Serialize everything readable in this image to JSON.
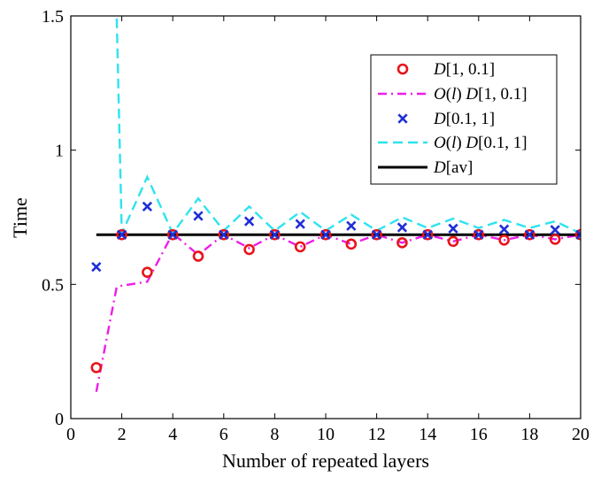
{
  "chart_data": {
    "type": "line",
    "xlabel": "Number of repeated layers",
    "ylabel": "Time",
    "xlim": [
      0,
      20
    ],
    "ylim": [
      0,
      1.5
    ],
    "xticks": [
      0,
      2,
      4,
      6,
      8,
      10,
      12,
      14,
      16,
      18,
      20
    ],
    "yticks": [
      0,
      0.5,
      1,
      1.5
    ],
    "xtick_labels": [
      "0",
      "2",
      "4",
      "6",
      "8",
      "10",
      "12",
      "14",
      "16",
      "18",
      "20"
    ],
    "ytick_labels": [
      "0",
      "0.5",
      "1",
      "1.5"
    ],
    "grid": false,
    "legend_position": "top-right",
    "series": [
      {
        "key": "d1",
        "legend": {
          "italic": "D",
          "rest": "[1, 0.1]"
        },
        "style": "markers-circle",
        "color": "#e8141b",
        "x": [
          1,
          2,
          3,
          4,
          5,
          6,
          7,
          8,
          9,
          10,
          11,
          12,
          13,
          14,
          15,
          16,
          17,
          18,
          19,
          20
        ],
        "y": [
          0.19,
          0.685,
          0.545,
          0.685,
          0.605,
          0.685,
          0.63,
          0.685,
          0.64,
          0.685,
          0.65,
          0.685,
          0.655,
          0.685,
          0.66,
          0.685,
          0.665,
          0.685,
          0.668,
          0.685
        ]
      },
      {
        "key": "o1",
        "legend": {
          "italic": "O",
          "mid": "(",
          "italic2": "l",
          "mid2": ") ",
          "italic3": "D",
          "rest": "[1, 0.1]"
        },
        "style": "dashdot",
        "color": "#ee1ee8",
        "x": [
          1,
          1.8,
          2,
          3,
          4,
          5,
          6,
          7,
          8,
          9,
          10,
          11,
          12,
          13,
          14,
          15,
          16,
          17,
          18,
          19,
          20
        ],
        "y": [
          0.1,
          0.49,
          0.495,
          0.51,
          0.69,
          0.61,
          0.685,
          0.635,
          0.685,
          0.64,
          0.685,
          0.65,
          0.685,
          0.655,
          0.685,
          0.66,
          0.685,
          0.665,
          0.685,
          0.668,
          0.685
        ]
      },
      {
        "key": "d2",
        "legend": {
          "italic": "D",
          "rest": "[0.1, 1]"
        },
        "style": "markers-x",
        "color": "#1f2fd6",
        "x": [
          1,
          2,
          3,
          4,
          5,
          6,
          7,
          8,
          9,
          10,
          11,
          12,
          13,
          14,
          15,
          16,
          17,
          18,
          19,
          20
        ],
        "y": [
          0.565,
          0.685,
          0.79,
          0.685,
          0.755,
          0.685,
          0.735,
          0.685,
          0.725,
          0.685,
          0.718,
          0.685,
          0.712,
          0.685,
          0.708,
          0.685,
          0.705,
          0.685,
          0.703,
          0.685
        ]
      },
      {
        "key": "o2",
        "legend": {
          "italic": "O",
          "mid": "(",
          "italic2": "l",
          "mid2": ") ",
          "italic3": "D",
          "rest": "[0.1, 1]"
        },
        "style": "dashed",
        "color": "#2ee3ee",
        "x": [
          1.55,
          1.8,
          2,
          3,
          4,
          5,
          6,
          7,
          8,
          9,
          10,
          11,
          12,
          13,
          14,
          15,
          16,
          17,
          18,
          19,
          20
        ],
        "y": [
          1.6,
          1.5,
          0.69,
          0.9,
          0.69,
          0.82,
          0.7,
          0.79,
          0.7,
          0.77,
          0.7,
          0.76,
          0.7,
          0.75,
          0.71,
          0.745,
          0.71,
          0.74,
          0.71,
          0.735,
          0.69
        ]
      },
      {
        "key": "av",
        "legend": {
          "italic": "D",
          "rest": "[av]"
        },
        "style": "solid",
        "color": "#000000",
        "x": [
          1,
          20
        ],
        "y": [
          0.685,
          0.685
        ]
      }
    ]
  }
}
